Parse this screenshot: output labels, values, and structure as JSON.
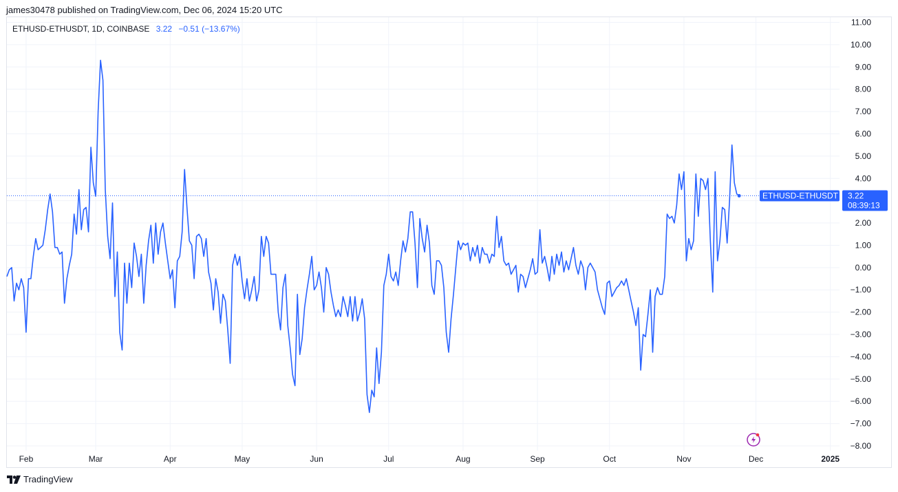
{
  "header": {
    "publisher": "james30478 published on TradingView.com, Dec 06, 2024 15:20 UTC"
  },
  "legend": {
    "symbol": "ETHUSD-ETHUSDT, 1D, COINBASE",
    "last": "3.22",
    "change": "−0.51 (−13.67%)"
  },
  "price_tag": {
    "label": "ETHUSD-ETHUSDT",
    "value": "3.22",
    "countdown": "08:39:13"
  },
  "footer": {
    "brand": "TradingView"
  },
  "colors": {
    "line": "#2962ff",
    "grid": "#f0f3fa",
    "tag_bg": "#2962ff"
  },
  "icons": {
    "logo": "tradingview-logo-icon",
    "bolt": "lightning-bolt-icon"
  },
  "chart_data": {
    "type": "line",
    "ylim": [
      -8,
      11
    ],
    "y_ticks": [
      "11.00",
      "10.00",
      "9.00",
      "8.00",
      "7.00",
      "6.00",
      "5.00",
      "4.00",
      "3.00",
      "2.00",
      "1.00",
      "0.00",
      "−1.00",
      "−2.00",
      "−3.00",
      "−4.00",
      "−5.00",
      "−6.00",
      "−7.00",
      "−8.00"
    ],
    "x_ticks": [
      {
        "label": "Feb",
        "day": 31
      },
      {
        "label": "Mar",
        "day": 60
      },
      {
        "label": "Apr",
        "day": 91
      },
      {
        "label": "May",
        "day": 121
      },
      {
        "label": "Jun",
        "day": 152
      },
      {
        "label": "Jul",
        "day": 182
      },
      {
        "label": "Aug",
        "day": 213
      },
      {
        "label": "Sep",
        "day": 244
      },
      {
        "label": "Oct",
        "day": 274
      },
      {
        "label": "Nov",
        "day": 305
      },
      {
        "label": "Dec",
        "day": 335
      },
      {
        "label": "2025",
        "day": 366,
        "bold": true
      }
    ],
    "x_range": [
      23,
      378
    ],
    "series": [
      {
        "values": [
          [
            23,
            -0.4
          ],
          [
            24,
            -0.1
          ],
          [
            25,
            0
          ],
          [
            26,
            -1.5
          ],
          [
            27,
            -0.7
          ],
          [
            28,
            -1
          ],
          [
            29,
            -0.5
          ],
          [
            30,
            -0.9
          ],
          [
            31,
            -2.9
          ],
          [
            32,
            -0.5
          ],
          [
            33,
            -0.5
          ],
          [
            34,
            0.5
          ],
          [
            35,
            1.3
          ],
          [
            36,
            0.8
          ],
          [
            37,
            0.9
          ],
          [
            38,
            1
          ],
          [
            39,
            1.7
          ],
          [
            40,
            2.6
          ],
          [
            41,
            3.3
          ],
          [
            42,
            2.5
          ],
          [
            43,
            0.9
          ],
          [
            44,
            0.9
          ],
          [
            45,
            0.6
          ],
          [
            46,
            0.7
          ],
          [
            47,
            -1.6
          ],
          [
            48,
            -0.5
          ],
          [
            49,
            0.1
          ],
          [
            50,
            0.6
          ],
          [
            51,
            2.4
          ],
          [
            52,
            1.5
          ],
          [
            53,
            3.5
          ],
          [
            54,
            1.7
          ],
          [
            55,
            2.6
          ],
          [
            56,
            2.7
          ],
          [
            57,
            1.6
          ],
          [
            58,
            5.4
          ],
          [
            59,
            3.8
          ],
          [
            60,
            3.2
          ],
          [
            61,
            7
          ],
          [
            62,
            9.3
          ],
          [
            63,
            8.4
          ],
          [
            64,
            3.5
          ],
          [
            65,
            1.4
          ],
          [
            66,
            0.4
          ],
          [
            67,
            2.9
          ],
          [
            68,
            -1.3
          ],
          [
            69,
            0.7
          ],
          [
            70,
            -2.9
          ],
          [
            71,
            -3.7
          ],
          [
            72,
            0.2
          ],
          [
            73,
            -1.6
          ],
          [
            74,
            0.2
          ],
          [
            75,
            -0.9
          ],
          [
            76,
            1.1
          ],
          [
            77,
            0.5
          ],
          [
            78,
            -0.4
          ],
          [
            79,
            0.6
          ],
          [
            80,
            -1.6
          ],
          [
            81,
            0.1
          ],
          [
            82,
            1.2
          ],
          [
            83,
            1.9
          ],
          [
            84,
            0.2
          ],
          [
            85,
            2
          ],
          [
            86,
            0.6
          ],
          [
            87,
            1.6
          ],
          [
            88,
            2
          ],
          [
            89,
            1.1
          ],
          [
            90,
            0.3
          ],
          [
            91,
            -0.5
          ],
          [
            92,
            -0.1
          ],
          [
            93,
            -1.8
          ],
          [
            94,
            0.3
          ],
          [
            95,
            0.5
          ],
          [
            96,
            1.6
          ],
          [
            97,
            4.4
          ],
          [
            98,
            2.7
          ],
          [
            99,
            1.2
          ],
          [
            100,
            1
          ],
          [
            101,
            -0.5
          ],
          [
            102,
            1.4
          ],
          [
            103,
            1.5
          ],
          [
            104,
            1.3
          ],
          [
            105,
            0.5
          ],
          [
            106,
            1.3
          ],
          [
            107,
            -0.2
          ],
          [
            108,
            -0.7
          ],
          [
            109,
            -1.9
          ],
          [
            110,
            -0.5
          ],
          [
            111,
            -1.1
          ],
          [
            112,
            -2.5
          ],
          [
            113,
            -1.2
          ],
          [
            114,
            -1.5
          ],
          [
            115,
            -2.8
          ],
          [
            116,
            -4.3
          ],
          [
            117,
            0.1
          ],
          [
            118,
            0.6
          ],
          [
            119,
            0.1
          ],
          [
            120,
            0.5
          ],
          [
            121,
            -0.6
          ],
          [
            122,
            -1.4
          ],
          [
            123,
            -0.5
          ],
          [
            124,
            -1.5
          ],
          [
            125,
            -1
          ],
          [
            126,
            -0.4
          ],
          [
            127,
            -1.5
          ],
          [
            128,
            -1
          ],
          [
            129,
            1.4
          ],
          [
            130,
            0.5
          ],
          [
            131,
            1.4
          ],
          [
            132,
            1.1
          ],
          [
            133,
            -0.3
          ],
          [
            134,
            -0.3
          ],
          [
            135,
            -0.3
          ],
          [
            136,
            -2
          ],
          [
            137,
            -2.8
          ],
          [
            138,
            -0.9
          ],
          [
            139,
            -0.3
          ],
          [
            140,
            -2.6
          ],
          [
            141,
            -3.6
          ],
          [
            142,
            -4.8
          ],
          [
            143,
            -5.3
          ],
          [
            144,
            -1.2
          ],
          [
            145,
            -3.9
          ],
          [
            146,
            -3.2
          ],
          [
            147,
            -1.8
          ],
          [
            148,
            -1
          ],
          [
            149,
            -0.3
          ],
          [
            150,
            0.5
          ],
          [
            151,
            -1
          ],
          [
            152,
            -0.8
          ],
          [
            153,
            -0.2
          ],
          [
            154,
            -0.9
          ],
          [
            155,
            -2
          ],
          [
            156,
            0
          ],
          [
            157,
            -0.3
          ],
          [
            158,
            -1.1
          ],
          [
            159,
            -1.7
          ],
          [
            160,
            -2.2
          ],
          [
            161,
            -1.9
          ],
          [
            162,
            -2.2
          ],
          [
            163,
            -1.3
          ],
          [
            164,
            -1.7
          ],
          [
            165,
            -2.2
          ],
          [
            166,
            -1.3
          ],
          [
            167,
            -2.4
          ],
          [
            168,
            -1.3
          ],
          [
            169,
            -2.4
          ],
          [
            170,
            -2
          ],
          [
            171,
            -1.4
          ],
          [
            172,
            -2.3
          ],
          [
            173,
            -5.7
          ],
          [
            174,
            -6.5
          ],
          [
            175,
            -5.5
          ],
          [
            176,
            -5.8
          ],
          [
            177,
            -3.6
          ],
          [
            178,
            -5.2
          ],
          [
            179,
            -3.8
          ],
          [
            180,
            -0.8
          ],
          [
            181,
            -0.3
          ],
          [
            182,
            0.6
          ],
          [
            183,
            -0.4
          ],
          [
            184,
            -0.6
          ],
          [
            185,
            -0.2
          ],
          [
            186,
            -0.8
          ],
          [
            187,
            0.3
          ],
          [
            188,
            1.2
          ],
          [
            189,
            0.7
          ],
          [
            190,
            1.3
          ],
          [
            191,
            2.5
          ],
          [
            192,
            2.5
          ],
          [
            193,
            1.1
          ],
          [
            194,
            -0.9
          ],
          [
            195,
            2.2
          ],
          [
            196,
            1.3
          ],
          [
            197,
            0.7
          ],
          [
            198,
            1.9
          ],
          [
            199,
            1.1
          ],
          [
            200,
            -0.8
          ],
          [
            201,
            -1.2
          ],
          [
            202,
            0.3
          ],
          [
            203,
            0.3
          ],
          [
            204,
            0.1
          ],
          [
            205,
            -0.9
          ],
          [
            206,
            -2.9
          ],
          [
            207,
            -3.8
          ],
          [
            208,
            -2.3
          ],
          [
            209,
            -1.2
          ],
          [
            210,
            0
          ],
          [
            211,
            1.2
          ],
          [
            212,
            0.8
          ],
          [
            213,
            1.1
          ],
          [
            214,
            1
          ],
          [
            215,
            1.1
          ],
          [
            216,
            0.3
          ],
          [
            217,
            0.9
          ],
          [
            218,
            0.5
          ],
          [
            219,
            1
          ],
          [
            220,
            0.2
          ],
          [
            221,
            0.9
          ],
          [
            222,
            0.6
          ],
          [
            223,
            0.6
          ],
          [
            224,
            0.2
          ],
          [
            225,
            0.6
          ],
          [
            226,
            0.5
          ],
          [
            227,
            2.3
          ],
          [
            228,
            0.9
          ],
          [
            229,
            1.4
          ],
          [
            230,
            0.3
          ],
          [
            231,
            0.1
          ],
          [
            232,
            0.2
          ],
          [
            233,
            -0.3
          ],
          [
            234,
            -0.1
          ],
          [
            235,
            0.1
          ],
          [
            236,
            -1.1
          ],
          [
            237,
            -0.3
          ],
          [
            238,
            -0.4
          ],
          [
            239,
            -0.9
          ],
          [
            240,
            -0.5
          ],
          [
            241,
            -0.1
          ],
          [
            242,
            0.4
          ],
          [
            243,
            -0.3
          ],
          [
            244,
            -0.2
          ],
          [
            245,
            1.7
          ],
          [
            246,
            0.2
          ],
          [
            247,
            0.5
          ],
          [
            248,
            0
          ],
          [
            249,
            -0.6
          ],
          [
            250,
            0.5
          ],
          [
            251,
            -0.3
          ],
          [
            252,
            0.6
          ],
          [
            253,
            0.1
          ],
          [
            254,
            0.7
          ],
          [
            255,
            -0.2
          ],
          [
            256,
            0.3
          ],
          [
            257,
            -0.1
          ],
          [
            258,
            0.4
          ],
          [
            259,
            0.9
          ],
          [
            260,
            0.1
          ],
          [
            261,
            -0.3
          ],
          [
            262,
            0.3
          ],
          [
            263,
            0
          ],
          [
            264,
            -1
          ],
          [
            265,
            0
          ],
          [
            266,
            0.2
          ],
          [
            267,
            0
          ],
          [
            268,
            -0.2
          ],
          [
            269,
            -1
          ],
          [
            270,
            -1.4
          ],
          [
            271,
            -1.8
          ],
          [
            272,
            -2.1
          ],
          [
            273,
            -0.7
          ],
          [
            274,
            -0.6
          ],
          [
            275,
            -1.3
          ],
          [
            276,
            -1.1
          ],
          [
            277,
            -0.9
          ],
          [
            278,
            -0.8
          ],
          [
            279,
            -0.6
          ],
          [
            280,
            -0.8
          ],
          [
            281,
            -0.5
          ],
          [
            282,
            -1
          ],
          [
            283,
            -1.5
          ],
          [
            284,
            -2
          ],
          [
            285,
            -2.6
          ],
          [
            286,
            -1.8
          ],
          [
            287,
            -4.6
          ],
          [
            288,
            -3
          ],
          [
            289,
            -3.1
          ],
          [
            290,
            -2.1
          ],
          [
            291,
            -1
          ],
          [
            292,
            -3.8
          ],
          [
            293,
            -1.3
          ],
          [
            294,
            -0.9
          ],
          [
            295,
            -1.2
          ],
          [
            296,
            -1.2
          ],
          [
            297,
            -0.4
          ],
          [
            298,
            2.4
          ],
          [
            299,
            2.2
          ],
          [
            300,
            2.3
          ],
          [
            301,
            2
          ],
          [
            302,
            2.8
          ],
          [
            303,
            4.2
          ],
          [
            304,
            3.5
          ],
          [
            305,
            4.3
          ],
          [
            306,
            0.3
          ],
          [
            307,
            1.3
          ],
          [
            308,
            0.8
          ],
          [
            309,
            1.2
          ],
          [
            310,
            4.2
          ],
          [
            311,
            2.3
          ],
          [
            312,
            4
          ],
          [
            313,
            3.9
          ],
          [
            314,
            3.5
          ],
          [
            315,
            4
          ],
          [
            316,
            1.2
          ],
          [
            317,
            -1.1
          ],
          [
            318,
            4.3
          ],
          [
            319,
            0.3
          ],
          [
            320,
            1.2
          ],
          [
            321,
            2.7
          ],
          [
            322,
            2.6
          ],
          [
            323,
            1.1
          ],
          [
            324,
            3
          ],
          [
            325,
            5.5
          ],
          [
            326,
            3.8
          ],
          [
            327,
            3.3
          ],
          [
            328,
            3.22
          ]
        ]
      }
    ]
  }
}
